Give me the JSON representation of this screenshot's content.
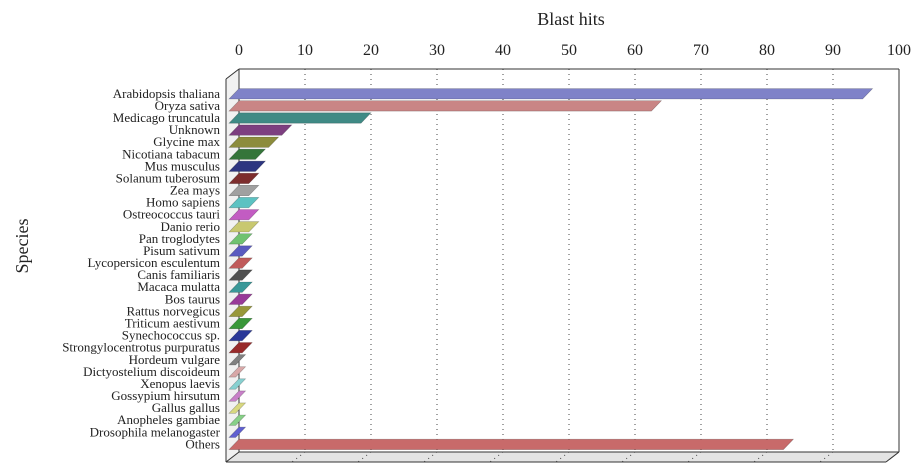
{
  "chart_data": {
    "type": "bar",
    "orientation": "horizontal",
    "xaxis_position": "top",
    "xlabel": "Blast hits",
    "ylabel": "Species",
    "xlim": [
      0,
      100
    ],
    "xticks": [
      0,
      10,
      20,
      30,
      40,
      50,
      60,
      70,
      80,
      90,
      100
    ],
    "grid": true,
    "categories": [
      "Arabidopsis thaliana",
      "Oryza sativa",
      "Medicago truncatula",
      "Unknown",
      "Glycine max",
      "Nicotiana tabacum",
      "Mus musculus",
      "Solanum tuberosum",
      "Zea mays",
      "Homo sapiens",
      "Ostreococcus tauri",
      "Danio rerio",
      "Pan troglodytes",
      "Pisum sativum",
      "Lycopersicon esculentum",
      "Canis familiaris",
      "Macaca mulatta",
      "Bos taurus",
      "Rattus norvegicus",
      "Triticum aestivum",
      "Synechococcus sp.",
      "Strongylocentrotus purpuratus",
      "Hordeum vulgare",
      "Dictyostelium discoideum",
      "Xenopus laevis",
      "Gossypium hirsutum",
      "Gallus gallus",
      "Anopheles gambiae",
      "Drosophila melanogaster",
      "Others"
    ],
    "values": [
      96,
      64,
      20,
      8,
      6,
      4,
      4,
      3,
      3,
      3,
      3,
      3,
      2,
      2,
      2,
      2,
      2,
      2,
      2,
      2,
      2,
      2,
      1,
      1,
      1,
      1,
      1,
      1,
      1,
      84
    ],
    "colors": [
      "#7f82c8",
      "#c98585",
      "#3f8a85",
      "#7d3f80",
      "#8c8c3c",
      "#35753a",
      "#2d3580",
      "#7d2d2d",
      "#a0a0a0",
      "#5cc2c2",
      "#c25cc2",
      "#c8c870",
      "#70c270",
      "#5a5ac0",
      "#c05a5a",
      "#505050",
      "#3a9898",
      "#983a98",
      "#98983a",
      "#3a983a",
      "#2a3898",
      "#982a2a",
      "#808080",
      "#d8a8a8",
      "#88d0d0",
      "#c880c8",
      "#d8d880",
      "#88d088",
      "#6060d0",
      "#c86a6a"
    ]
  }
}
